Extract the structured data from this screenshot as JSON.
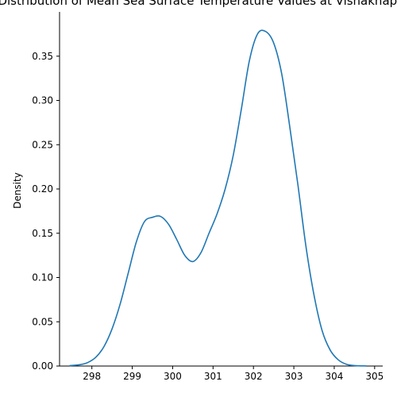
{
  "chart_data": {
    "type": "line",
    "title": "Distribution of Mean Sea Surface Temperature Values at Vishakhapatnam",
    "xlabel": "",
    "ylabel": "Density",
    "xlim": [
      297.2,
      305.2
    ],
    "ylim": [
      0,
      0.4
    ],
    "x_ticks": [
      "298",
      "299",
      "300",
      "301",
      "302",
      "303",
      "304",
      "305"
    ],
    "y_ticks": [
      "0.00",
      "0.05",
      "0.10",
      "0.15",
      "0.20",
      "0.25",
      "0.30",
      "0.35"
    ],
    "grid": false,
    "series": [
      {
        "color": "#1f77b4",
        "x": [
          297.45,
          297.7,
          297.9,
          298.1,
          298.3,
          298.5,
          298.7,
          298.9,
          299.1,
          299.3,
          299.5,
          299.7,
          299.9,
          300.1,
          300.3,
          300.5,
          300.7,
          300.9,
          301.1,
          301.3,
          301.5,
          301.7,
          301.9,
          302.1,
          302.3,
          302.5,
          302.7,
          302.9,
          303.1,
          303.3,
          303.5,
          303.7,
          303.9,
          304.1,
          304.3,
          304.5,
          304.8
        ],
        "y": [
          0.0005,
          0.0015,
          0.004,
          0.01,
          0.022,
          0.042,
          0.07,
          0.105,
          0.14,
          0.163,
          0.168,
          0.169,
          0.16,
          0.143,
          0.125,
          0.118,
          0.128,
          0.15,
          0.172,
          0.2,
          0.238,
          0.29,
          0.345,
          0.375,
          0.378,
          0.365,
          0.33,
          0.27,
          0.205,
          0.135,
          0.08,
          0.04,
          0.018,
          0.007,
          0.002,
          0.0005,
          0.0001
        ]
      }
    ]
  }
}
